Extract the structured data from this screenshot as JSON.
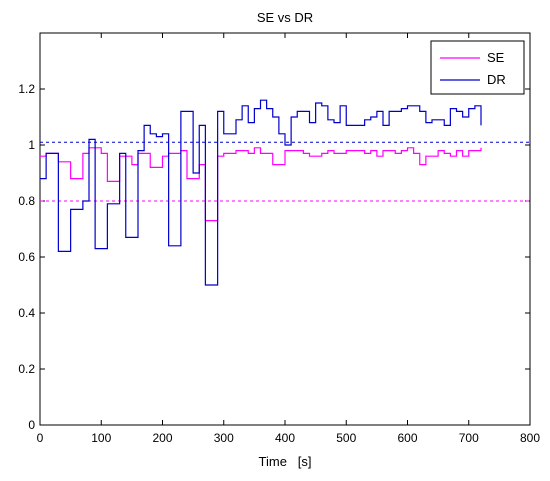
{
  "chart_data": {
    "type": "line",
    "title": "SE vs DR",
    "xlabel": "Time   [s]",
    "ylabel": "",
    "xlim": [
      0,
      800
    ],
    "ylim": [
      0,
      1.4
    ],
    "xticks": [
      0,
      100,
      200,
      300,
      400,
      500,
      600,
      700,
      800
    ],
    "yticks": [
      0,
      0.2,
      0.4,
      0.6,
      0.8,
      1,
      1.2
    ],
    "ytick_labels": [
      "0",
      "0.2",
      "0.4",
      "0.6",
      "0.8",
      "1",
      "1.2"
    ],
    "grid": false,
    "legend_position": "top-right",
    "step": true,
    "series": [
      {
        "name": "SE",
        "color": "#ff00ff",
        "x": [
          0,
          10,
          20,
          30,
          40,
          50,
          60,
          70,
          80,
          90,
          100,
          110,
          120,
          130,
          140,
          150,
          160,
          170,
          180,
          190,
          200,
          210,
          220,
          230,
          240,
          250,
          260,
          270,
          280,
          290,
          300,
          310,
          320,
          330,
          340,
          350,
          360,
          370,
          380,
          390,
          400,
          410,
          420,
          430,
          440,
          450,
          460,
          470,
          480,
          490,
          500,
          510,
          520,
          530,
          540,
          550,
          560,
          570,
          580,
          590,
          600,
          610,
          620,
          630,
          640,
          650,
          660,
          670,
          680,
          690,
          700,
          710,
          720
        ],
        "y": [
          0.96,
          0.97,
          0.97,
          0.94,
          0.94,
          0.88,
          0.88,
          0.97,
          0.99,
          0.99,
          0.97,
          0.87,
          0.87,
          0.96,
          0.96,
          0.93,
          0.97,
          0.97,
          0.92,
          0.92,
          0.96,
          0.97,
          0.97,
          0.98,
          0.88,
          0.88,
          0.93,
          0.73,
          0.73,
          0.96,
          0.97,
          0.97,
          0.98,
          0.98,
          0.97,
          0.99,
          0.97,
          0.97,
          0.93,
          0.93,
          0.98,
          0.98,
          0.98,
          0.97,
          0.96,
          0.96,
          0.97,
          0.98,
          0.97,
          0.97,
          0.98,
          0.98,
          0.98,
          0.97,
          0.98,
          0.96,
          0.98,
          0.98,
          0.97,
          0.98,
          0.99,
          0.97,
          0.93,
          0.96,
          0.96,
          0.98,
          0.97,
          0.96,
          0.98,
          0.96,
          0.98,
          0.98,
          0.99
        ]
      },
      {
        "name": "DR",
        "color": "#0000cc",
        "x": [
          0,
          10,
          20,
          30,
          40,
          50,
          60,
          70,
          80,
          90,
          100,
          110,
          120,
          130,
          140,
          150,
          160,
          170,
          180,
          190,
          200,
          210,
          220,
          230,
          240,
          250,
          260,
          270,
          280,
          290,
          300,
          310,
          320,
          330,
          340,
          350,
          360,
          370,
          380,
          390,
          400,
          410,
          420,
          430,
          440,
          450,
          460,
          470,
          480,
          490,
          500,
          510,
          520,
          530,
          540,
          550,
          560,
          570,
          580,
          590,
          600,
          610,
          620,
          630,
          640,
          650,
          660,
          670,
          680,
          690,
          700,
          710,
          720
        ],
        "y": [
          0.88,
          0.97,
          0.97,
          0.62,
          0.62,
          0.77,
          0.77,
          0.8,
          1.02,
          0.63,
          0.63,
          0.79,
          0.79,
          0.97,
          0.67,
          0.67,
          0.98,
          1.07,
          1.04,
          1.03,
          1.04,
          0.64,
          0.64,
          1.12,
          1.12,
          0.9,
          1.07,
          0.5,
          0.5,
          1.12,
          1.04,
          1.04,
          1.09,
          1.14,
          1.08,
          1.13,
          1.16,
          1.13,
          1.1,
          1.04,
          1.0,
          1.1,
          1.12,
          1.12,
          1.08,
          1.15,
          1.14,
          1.09,
          1.08,
          1.14,
          1.07,
          1.07,
          1.07,
          1.09,
          1.1,
          1.12,
          1.07,
          1.12,
          1.12,
          1.13,
          1.14,
          1.14,
          1.12,
          1.08,
          1.09,
          1.09,
          1.07,
          1.13,
          1.12,
          1.1,
          1.13,
          1.14,
          1.07
        ]
      }
    ],
    "reference_lines": [
      {
        "y": 1.01,
        "color": "#0000cc",
        "style": "dashed"
      },
      {
        "y": 0.8,
        "color": "#ff00ff",
        "style": "dashed"
      }
    ]
  }
}
